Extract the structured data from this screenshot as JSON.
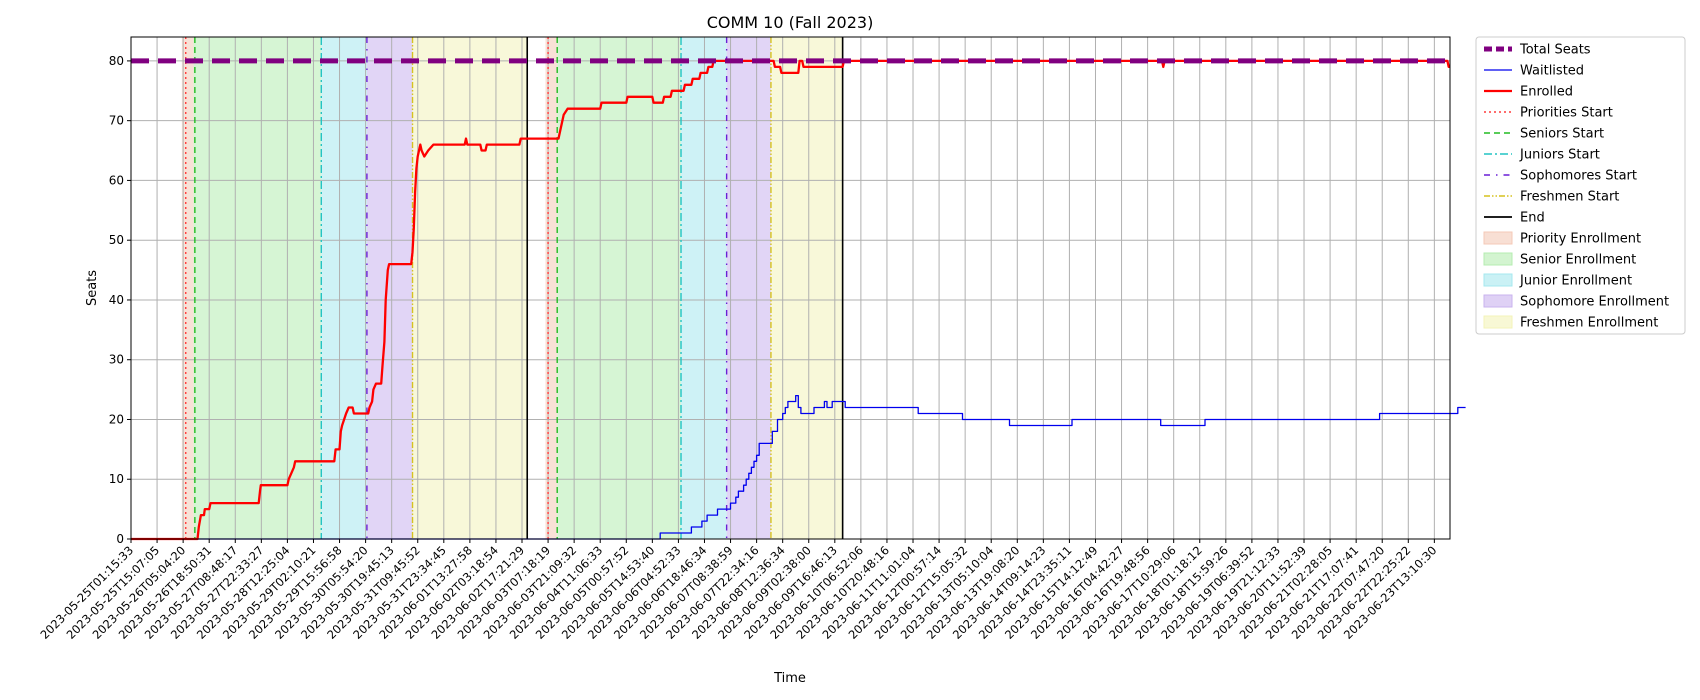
{
  "chart_data": {
    "type": "line",
    "title": "COMM 10 (Fall 2023)",
    "xlabel": "Time",
    "ylabel": "Seats",
    "ylim": [
      0,
      84
    ],
    "yticks": [
      0,
      10,
      20,
      30,
      40,
      50,
      60,
      70,
      80
    ],
    "grid": true,
    "legend_position": "outside-right",
    "xticks": [
      "2023-05-25T01:15:33",
      "2023-05-25T15:07:05",
      "2023-05-26T05:04:20",
      "2023-05-26T18:50:31",
      "2023-05-27T08:48:17",
      "2023-05-27T22:33:27",
      "2023-05-28T12:25:04",
      "2023-05-29T02:10:21",
      "2023-05-29T15:56:58",
      "2023-05-30T05:54:20",
      "2023-05-30T19:45:13",
      "2023-05-31T09:45:52",
      "2023-05-31T23:34:45",
      "2023-06-01T13:27:58",
      "2023-06-02T03:18:54",
      "2023-06-02T17:21:29",
      "2023-06-03T07:18:19",
      "2023-06-03T21:09:32",
      "2023-06-04T11:06:33",
      "2023-06-05T00:57:52",
      "2023-06-05T14:53:40",
      "2023-06-06T04:52:33",
      "2023-06-06T18:46:34",
      "2023-06-07T08:38:59",
      "2023-06-07T22:34:16",
      "2023-06-08T12:36:34",
      "2023-06-09T02:38:00",
      "2023-06-09T16:46:13",
      "2023-06-10T06:52:06",
      "2023-06-10T20:48:16",
      "2023-06-11T11:01:04",
      "2023-06-12T00:57:14",
      "2023-06-12T15:05:32",
      "2023-06-13T05:10:04",
      "2023-06-13T19:08:20",
      "2023-06-14T09:14:23",
      "2023-06-14T23:35:11",
      "2023-06-15T14:12:49",
      "2023-06-16T04:42:27",
      "2023-06-16T19:48:56",
      "2023-06-17T10:29:06",
      "2023-06-18T01:18:12",
      "2023-06-18T15:59:26",
      "2023-06-19T06:39:52",
      "2023-06-19T21:12:33",
      "2023-06-20T11:52:39",
      "2023-06-21T02:28:05",
      "2023-06-21T17:07:41",
      "2023-06-22T07:47:20",
      "2023-06-22T22:25:22",
      "2023-06-23T13:10:30"
    ],
    "x_range": [
      0,
      50.6
    ],
    "phases": [
      {
        "label": "Priority Enrollment",
        "color": "#f4c9b7",
        "ranges": [
          [
            1.95,
            2.4
          ],
          [
            15.9,
            16.35
          ]
        ]
      },
      {
        "label": "Senior Enrollment",
        "color": "#b5ecb0",
        "ranges": [
          [
            2.4,
            7.3
          ],
          [
            16.35,
            21.1
          ]
        ]
      },
      {
        "label": "Junior Enrollment",
        "color": "#a6e8ef",
        "ranges": [
          [
            7.3,
            9.05
          ],
          [
            21.1,
            22.85
          ]
        ]
      },
      {
        "label": "Sophomore Enrollment",
        "color": "#c9b3ee",
        "ranges": [
          [
            9.05,
            10.8
          ],
          [
            22.85,
            24.55
          ]
        ]
      },
      {
        "label": "Freshmen Enrollment",
        "color": "#f3f3b9",
        "ranges": [
          [
            10.8,
            15.2
          ],
          [
            24.55,
            27.3
          ]
        ]
      }
    ],
    "markers": [
      {
        "label": "Priorities Start",
        "color": "#ff3a3a",
        "dash": "2,3",
        "x": [
          2.1,
          16.0
        ]
      },
      {
        "label": "Seniors Start",
        "color": "#22bb22",
        "dash": "6,4",
        "x": [
          2.45,
          16.35
        ]
      },
      {
        "label": "Juniors Start",
        "color": "#22c4c4",
        "dash": "8,3,2,3",
        "x": [
          7.3,
          21.1
        ]
      },
      {
        "label": "Sophomores Start",
        "color": "#6a1fd6",
        "dash": "6,6,1.5,6",
        "x": [
          9.05,
          22.85
        ]
      },
      {
        "label": "Freshmen Start",
        "color": "#d6c21f",
        "dash": "6,2,1.5,2,1.5,2",
        "x": [
          10.8,
          24.55
        ]
      },
      {
        "label": "End",
        "color": "#000000",
        "dash": "",
        "x": [
          15.2,
          27.3
        ]
      }
    ],
    "series": [
      {
        "name": "Total Seats",
        "color": "#800080",
        "points": [
          [
            0,
            80
          ],
          [
            50.6,
            80
          ]
        ]
      },
      {
        "name": "Waitlisted",
        "color": "#0000ee",
        "points": [
          [
            0,
            0
          ],
          [
            20.3,
            0
          ],
          [
            20.3,
            1
          ],
          [
            21.5,
            1
          ],
          [
            21.5,
            2
          ],
          [
            21.9,
            2
          ],
          [
            21.9,
            3
          ],
          [
            22.1,
            3
          ],
          [
            22.1,
            4
          ],
          [
            22.5,
            4
          ],
          [
            22.5,
            5
          ],
          [
            23.0,
            5
          ],
          [
            23.0,
            6
          ],
          [
            23.2,
            6
          ],
          [
            23.2,
            7
          ],
          [
            23.3,
            7
          ],
          [
            23.3,
            8
          ],
          [
            23.5,
            8
          ],
          [
            23.5,
            9
          ],
          [
            23.6,
            9
          ],
          [
            23.6,
            10
          ],
          [
            23.7,
            10
          ],
          [
            23.7,
            11
          ],
          [
            23.8,
            11
          ],
          [
            23.8,
            12
          ],
          [
            23.9,
            12
          ],
          [
            23.9,
            13
          ],
          [
            24.0,
            13
          ],
          [
            24.0,
            14
          ],
          [
            24.1,
            14
          ],
          [
            24.1,
            16
          ],
          [
            24.6,
            16
          ],
          [
            24.6,
            18
          ],
          [
            24.8,
            18
          ],
          [
            24.8,
            20
          ],
          [
            25.0,
            20
          ],
          [
            25.0,
            21
          ],
          [
            25.1,
            21
          ],
          [
            25.1,
            22
          ],
          [
            25.2,
            22
          ],
          [
            25.2,
            23
          ],
          [
            25.5,
            23
          ],
          [
            25.5,
            24
          ],
          [
            25.6,
            24
          ],
          [
            25.6,
            22
          ],
          [
            25.7,
            22
          ],
          [
            25.7,
            21
          ],
          [
            26.2,
            21
          ],
          [
            26.2,
            22
          ],
          [
            26.6,
            22
          ],
          [
            26.6,
            23
          ],
          [
            26.7,
            23
          ],
          [
            26.7,
            22
          ],
          [
            26.9,
            22
          ],
          [
            26.9,
            23
          ],
          [
            27.4,
            23
          ],
          [
            27.4,
            22
          ],
          [
            30.2,
            22
          ],
          [
            30.2,
            21
          ],
          [
            31.9,
            21
          ],
          [
            31.9,
            20
          ],
          [
            33.7,
            20
          ],
          [
            33.7,
            19
          ],
          [
            36.1,
            19
          ],
          [
            36.1,
            20
          ],
          [
            39.5,
            20
          ],
          [
            39.5,
            19
          ],
          [
            41.2,
            19
          ],
          [
            41.2,
            20
          ],
          [
            47.9,
            20
          ],
          [
            47.9,
            21
          ],
          [
            50.9,
            21
          ],
          [
            50.9,
            22
          ],
          [
            51.2,
            22
          ]
        ]
      },
      {
        "name": "Enrolled",
        "color": "#ff0000",
        "points": [
          [
            0,
            0
          ],
          [
            2.55,
            0
          ],
          [
            2.6,
            2
          ],
          [
            2.68,
            4
          ],
          [
            2.8,
            4
          ],
          [
            2.83,
            5
          ],
          [
            3.0,
            5
          ],
          [
            3.05,
            6
          ],
          [
            4.9,
            6
          ],
          [
            4.95,
            8
          ],
          [
            4.98,
            9
          ],
          [
            6.0,
            9
          ],
          [
            6.05,
            10
          ],
          [
            6.15,
            11
          ],
          [
            6.25,
            12
          ],
          [
            6.3,
            13
          ],
          [
            7.8,
            13
          ],
          [
            7.85,
            15
          ],
          [
            8.0,
            15
          ],
          [
            8.05,
            18
          ],
          [
            8.1,
            19
          ],
          [
            8.25,
            21
          ],
          [
            8.35,
            22
          ],
          [
            8.5,
            22
          ],
          [
            8.55,
            21
          ],
          [
            9.1,
            21
          ],
          [
            9.15,
            22
          ],
          [
            9.25,
            23
          ],
          [
            9.3,
            25
          ],
          [
            9.4,
            26
          ],
          [
            9.6,
            26
          ],
          [
            9.65,
            29
          ],
          [
            9.72,
            33
          ],
          [
            9.77,
            40
          ],
          [
            9.85,
            45
          ],
          [
            9.9,
            46
          ],
          [
            10.75,
            46
          ],
          [
            10.8,
            48
          ],
          [
            10.85,
            52
          ],
          [
            10.9,
            58
          ],
          [
            10.95,
            62
          ],
          [
            11.0,
            64
          ],
          [
            11.1,
            66
          ],
          [
            11.15,
            65
          ],
          [
            11.25,
            64
          ],
          [
            11.4,
            65
          ],
          [
            11.6,
            66
          ],
          [
            12.8,
            66
          ],
          [
            12.85,
            67
          ],
          [
            12.9,
            66
          ],
          [
            13.4,
            66
          ],
          [
            13.45,
            65
          ],
          [
            13.6,
            65
          ],
          [
            13.65,
            66
          ],
          [
            14.9,
            66
          ],
          [
            14.95,
            67
          ],
          [
            16.4,
            67
          ],
          [
            16.5,
            69
          ],
          [
            16.6,
            71
          ],
          [
            16.75,
            72
          ],
          [
            18.0,
            72
          ],
          [
            18.05,
            73
          ],
          [
            19.0,
            73
          ],
          [
            19.05,
            74
          ],
          [
            20.0,
            74
          ],
          [
            20.05,
            73
          ],
          [
            20.4,
            73
          ],
          [
            20.45,
            74
          ],
          [
            20.7,
            74
          ],
          [
            20.75,
            75
          ],
          [
            21.2,
            75
          ],
          [
            21.25,
            76
          ],
          [
            21.5,
            76
          ],
          [
            21.55,
            77
          ],
          [
            21.8,
            77
          ],
          [
            21.85,
            78
          ],
          [
            22.1,
            78
          ],
          [
            22.15,
            79
          ],
          [
            22.3,
            79
          ],
          [
            22.35,
            80
          ],
          [
            24.65,
            80
          ],
          [
            24.7,
            79
          ],
          [
            24.9,
            79
          ],
          [
            24.95,
            78
          ],
          [
            25.6,
            78
          ],
          [
            25.65,
            80
          ],
          [
            25.75,
            80
          ],
          [
            25.8,
            79
          ],
          [
            27.3,
            79
          ],
          [
            27.35,
            80
          ],
          [
            39.55,
            80
          ],
          [
            39.6,
            79
          ],
          [
            39.65,
            80
          ],
          [
            50.5,
            80
          ],
          [
            50.55,
            79
          ],
          [
            50.6,
            79
          ]
        ]
      }
    ]
  }
}
